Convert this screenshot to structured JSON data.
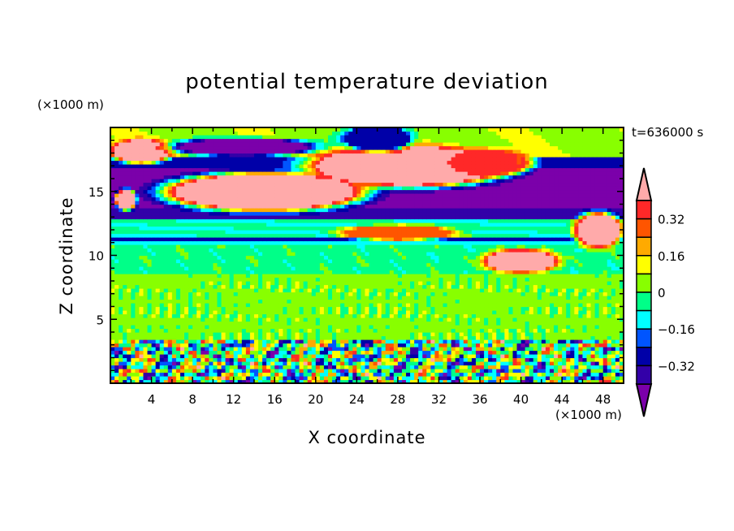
{
  "chart_data": {
    "type": "heatmap",
    "title": "potential temperature deviation",
    "xlabel": "X coordinate",
    "ylabel": "Z coordinate",
    "x_unit": "(×1000 m)",
    "z_unit": "(×1000 m)",
    "time_label": "t=636000 s",
    "xlim": [
      0,
      50
    ],
    "ylim": [
      0,
      20
    ],
    "xticks": [
      4,
      8,
      12,
      16,
      20,
      24,
      28,
      32,
      36,
      40,
      44,
      48
    ],
    "yticks": [
      5,
      10,
      15
    ],
    "levels": [
      -0.4,
      -0.32,
      -0.24,
      -0.16,
      -0.08,
      0,
      0.08,
      0.16,
      0.24,
      0.32,
      0.4
    ],
    "colorbar_labels": [
      "0.32",
      "0.16",
      "0",
      "−0.16",
      "−0.32"
    ],
    "colorbar_label_values": [
      0.32,
      0.16,
      0,
      -0.16,
      -0.32
    ],
    "colors": [
      "#7b00aa",
      "#3300a8",
      "#0000a8",
      "#0055ff",
      "#00ffff",
      "#00ff88",
      "#88ff00",
      "#ffff00",
      "#ffaa00",
      "#ff5500",
      "#ff2828",
      "#ffaaaa"
    ],
    "vertical_profile": [
      {
        "z0": 0,
        "z1": 3.5,
        "regime": "turbulent",
        "value": 0
      },
      {
        "z0": 3.5,
        "z1": 8.5,
        "value": 0.03
      },
      {
        "z0": 8.5,
        "z1": 10.8,
        "value": -0.04
      },
      {
        "z0": 10.8,
        "z1": 11.05,
        "value": -0.12
      },
      {
        "z0": 11.05,
        "z1": 11.35,
        "value": -0.3
      },
      {
        "z0": 11.35,
        "z1": 13.0,
        "value": -0.07
      },
      {
        "z0": 13.0,
        "z1": 13.6,
        "value": -0.36
      },
      {
        "z0": 13.6,
        "z1": 17.0,
        "value": -0.45
      },
      {
        "z0": 17.0,
        "z1": 17.6,
        "value": -0.3
      },
      {
        "z0": 17.6,
        "z1": 20,
        "value": 0.05
      }
    ],
    "features": [
      {
        "x": 15,
        "z": 15.0,
        "rx": 8.5,
        "rz": 1.3,
        "value": 0.5
      },
      {
        "x": 29,
        "z": 17.0,
        "rx": 8.5,
        "rz": 1.4,
        "value": 0.5
      },
      {
        "x": 3,
        "z": 18.2,
        "rx": 2.6,
        "rz": 0.8,
        "value": 0.5
      },
      {
        "x": 37,
        "z": 17.3,
        "rx": 3.5,
        "rz": 0.9,
        "value": 0.32
      },
      {
        "x": 40,
        "z": 9.6,
        "rx": 3.2,
        "rz": 0.8,
        "value": 0.45
      },
      {
        "x": 47.5,
        "z": 12.0,
        "rx": 2,
        "rz": 1.2,
        "value": 0.45
      },
      {
        "x": 1.5,
        "z": 14.4,
        "rx": 0.9,
        "rz": 0.7,
        "value": 0.45
      },
      {
        "x": 26,
        "z": 19.2,
        "rx": 3,
        "rz": 0.9,
        "value": -0.3
      },
      {
        "x": 13,
        "z": 18.5,
        "rx": 6,
        "rz": 0.6,
        "value": -0.45
      },
      {
        "x": 28,
        "z": 11.8,
        "rx": 5,
        "rz": 0.5,
        "value": 0.3
      }
    ]
  }
}
